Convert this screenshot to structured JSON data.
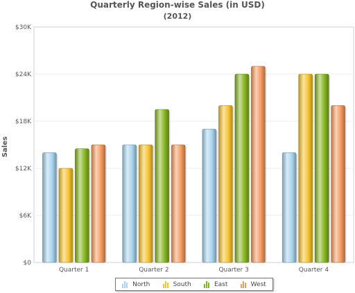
{
  "chart_data": {
    "type": "bar",
    "title": "Quarterly Region-wise Sales (in USD)",
    "subtitle": "(2012)",
    "xlabel": "",
    "ylabel": "Sales",
    "ylim": [
      0,
      30000
    ],
    "yticks": [
      0,
      6000,
      12000,
      18000,
      24000,
      30000
    ],
    "ytick_labels": [
      "$0",
      "$6K",
      "$12K",
      "$18K",
      "$24K",
      "$30K"
    ],
    "categories": [
      "Quarter 1",
      "Quarter 2",
      "Quarter 3",
      "Quarter 4"
    ],
    "series": [
      {
        "name": "North",
        "color": "#a8d4ef",
        "values": [
          14000,
          15000,
          17000,
          14000
        ]
      },
      {
        "name": "South",
        "color": "#f7c42f",
        "values": [
          12000,
          15000,
          20000,
          24000
        ]
      },
      {
        "name": "East",
        "color": "#86b51f",
        "values": [
          14500,
          19500,
          24000,
          24000
        ]
      },
      {
        "name": "West",
        "color": "#f59a5f",
        "values": [
          15000,
          15000,
          25000,
          20000
        ]
      }
    ],
    "grid": true,
    "legend_position": "bottom"
  }
}
